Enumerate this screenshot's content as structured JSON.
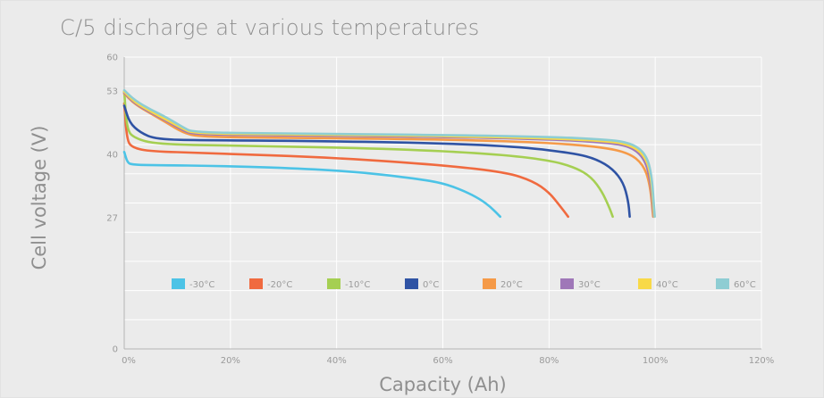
{
  "chart_data": {
    "type": "line",
    "title": "C/5 discharge at various temperatures",
    "xlabel": "Capacity (Ah)",
    "ylabel": "Cell voltage (V)",
    "xlim": [
      0,
      120
    ],
    "ylim": [
      0,
      60
    ],
    "x_ticks": [
      "0%",
      "20%",
      "40%",
      "60%",
      "80%",
      "100%",
      "120%"
    ],
    "y_ticks": [
      0,
      27,
      40,
      53,
      60
    ],
    "grid": true,
    "legend_position": "inside-lower-center",
    "series": [
      {
        "name": "-30°C",
        "color": "#4cc3e6",
        "points": [
          [
            0,
            40.5
          ],
          [
            0.6,
            38.3
          ],
          [
            1.5,
            37.9
          ],
          [
            4,
            37.8
          ],
          [
            20,
            37.6
          ],
          [
            35,
            37.0
          ],
          [
            45,
            36.3
          ],
          [
            55,
            35.0
          ],
          [
            60,
            34.1
          ],
          [
            64,
            32.5
          ],
          [
            67,
            30.8
          ],
          [
            69,
            29.2
          ],
          [
            70.8,
            27.2
          ]
        ]
      },
      {
        "name": "-20°C",
        "color": "#f06a3f",
        "points": [
          [
            0,
            50.5
          ],
          [
            0.5,
            43
          ],
          [
            1.5,
            41.4
          ],
          [
            5,
            40.6
          ],
          [
            15,
            40.3
          ],
          [
            40,
            39.3
          ],
          [
            60,
            37.8
          ],
          [
            72,
            36.3
          ],
          [
            77,
            34.5
          ],
          [
            80,
            32.2
          ],
          [
            82,
            29.5
          ],
          [
            83.6,
            27.2
          ]
        ]
      },
      {
        "name": "-10°C",
        "color": "#a5cf52",
        "points": [
          [
            0,
            53
          ],
          [
            0.5,
            45
          ],
          [
            2,
            43.3
          ],
          [
            6,
            42.1
          ],
          [
            20,
            41.8
          ],
          [
            50,
            41.2
          ],
          [
            70,
            40.1
          ],
          [
            80,
            38.8
          ],
          [
            85,
            37.3
          ],
          [
            88,
            35.3
          ],
          [
            90,
            32.3
          ],
          [
            91.3,
            29.2
          ],
          [
            92,
            27.2
          ]
        ]
      },
      {
        "name": "0°C",
        "color": "#2f53a4",
        "points": [
          [
            0,
            50
          ],
          [
            1,
            46.5
          ],
          [
            3,
            44.5
          ],
          [
            6,
            43.1
          ],
          [
            15,
            42.9
          ],
          [
            40,
            42.7
          ],
          [
            60,
            42.3
          ],
          [
            75,
            41.5
          ],
          [
            85,
            40.2
          ],
          [
            89,
            39.0
          ],
          [
            92,
            37.0
          ],
          [
            94,
            34.2
          ],
          [
            94.9,
            30.5
          ],
          [
            95.2,
            27.2
          ]
        ]
      },
      {
        "name": "20°C",
        "color": "#f59a48",
        "points": [
          [
            0,
            52.5
          ],
          [
            2,
            50.3
          ],
          [
            5,
            48.4
          ],
          [
            8,
            46.5
          ],
          [
            11,
            44.5
          ],
          [
            14,
            43.6
          ],
          [
            30,
            43.4
          ],
          [
            60,
            43.1
          ],
          [
            80,
            42.4
          ],
          [
            90,
            41.5
          ],
          [
            95,
            40.3
          ],
          [
            97.7,
            38.0
          ],
          [
            99,
            34.0
          ],
          [
            99.6,
            27.2
          ]
        ]
      },
      {
        "name": "30°C",
        "color": "#9f77b8",
        "points": [
          [
            0,
            52.7
          ],
          [
            2,
            50.5
          ],
          [
            5,
            48.6
          ],
          [
            8,
            46.9
          ],
          [
            11,
            45.0
          ],
          [
            13,
            44.1
          ],
          [
            30,
            43.9
          ],
          [
            60,
            43.6
          ],
          [
            80,
            43.1
          ],
          [
            90,
            42.5
          ],
          [
            95,
            41.8
          ],
          [
            97.8,
            39.5
          ],
          [
            99.1,
            35.0
          ],
          [
            99.7,
            27.2
          ]
        ]
      },
      {
        "name": "40°C",
        "color": "#f8d948",
        "points": [
          [
            0,
            52.9
          ],
          [
            2,
            50.7
          ],
          [
            5,
            48.8
          ],
          [
            8,
            47.1
          ],
          [
            11,
            45.3
          ],
          [
            13,
            44.3
          ],
          [
            30,
            44.1
          ],
          [
            60,
            43.8
          ],
          [
            80,
            43.3
          ],
          [
            90,
            42.8
          ],
          [
            95,
            42.1
          ],
          [
            97.9,
            40.0
          ],
          [
            99.2,
            36.0
          ],
          [
            99.8,
            27.2
          ]
        ]
      },
      {
        "name": "60°C",
        "color": "#8ecdd3",
        "points": [
          [
            0,
            53.2
          ],
          [
            2,
            51.1
          ],
          [
            5,
            49.2
          ],
          [
            8,
            47.6
          ],
          [
            11,
            45.6
          ],
          [
            13,
            44.5
          ],
          [
            30,
            44.3
          ],
          [
            60,
            44.0
          ],
          [
            80,
            43.6
          ],
          [
            90,
            43.1
          ],
          [
            95,
            42.5
          ],
          [
            98,
            40.5
          ],
          [
            99.3,
            36.5
          ],
          [
            99.9,
            27.2
          ]
        ]
      }
    ]
  }
}
